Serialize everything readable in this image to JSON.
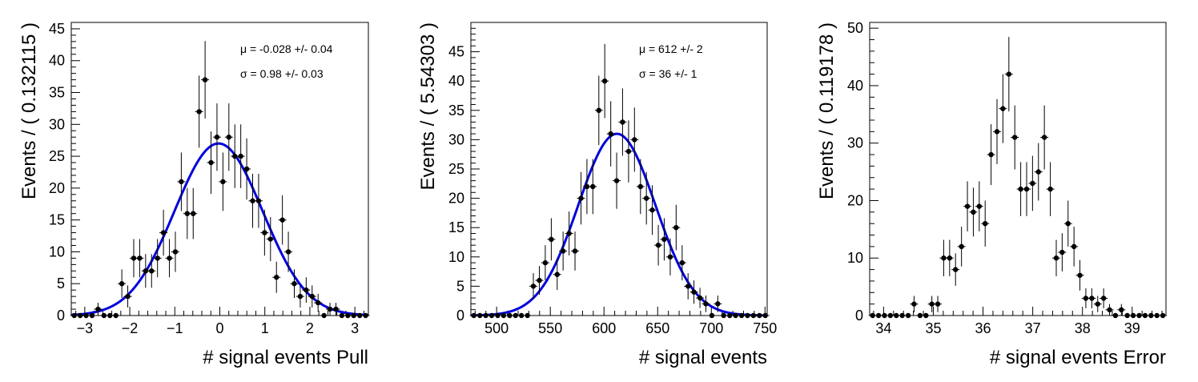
{
  "chart_data": [
    {
      "type": "scatter",
      "title": "",
      "xlabel": "# signal events Pull",
      "ylabel": "Events / ( 0.132115 )",
      "xlim": [
        -3.3,
        3.3
      ],
      "ylim": [
        0,
        46
      ],
      "xticks": [
        -3,
        -2,
        -1,
        0,
        1,
        2,
        3
      ],
      "yticks": [
        0,
        5,
        10,
        15,
        20,
        25,
        30,
        35,
        40,
        45
      ],
      "annotations": [
        "μ = -0.028 +/- 0.04",
        "σ =  0.98 +/- 0.03"
      ],
      "fit": {
        "mean": -0.028,
        "sigma": 0.98,
        "amplitude": 27,
        "color": "#0000dd"
      },
      "series": [
        {
          "marker_color": "#000000",
          "x": [
            -3.2339,
            -3.1018,
            -2.9697,
            -2.8376,
            -2.7054,
            -2.5733,
            -2.4412,
            -2.3091,
            -2.177,
            -2.0449,
            -1.9127,
            -1.7806,
            -1.6485,
            -1.5164,
            -1.3843,
            -1.2522,
            -1.12,
            -0.9879,
            -0.8558,
            -0.7237,
            -0.5916,
            -0.4595,
            -0.3273,
            -0.1952,
            -0.0631,
            0.069,
            0.2011,
            0.3332,
            0.4654,
            0.5975,
            0.7296,
            0.8617,
            0.9938,
            1.1259,
            1.2581,
            1.3902,
            1.5223,
            1.6544,
            1.7865,
            1.9186,
            2.0508,
            2.1829,
            2.315,
            2.4471,
            2.5792,
            2.7113,
            2.8435,
            2.9756,
            3.1077,
            3.2398
          ],
          "y": [
            0,
            0,
            0,
            0,
            1,
            0,
            0,
            0,
            5,
            3,
            9,
            9,
            7,
            7,
            9,
            13,
            9,
            10,
            21,
            16,
            16,
            32,
            37,
            24,
            28,
            21,
            28,
            25,
            25,
            23,
            18,
            18,
            13,
            12,
            6,
            15,
            10,
            5,
            3,
            4,
            3,
            2,
            0,
            1,
            1,
            0,
            0,
            0,
            0,
            0
          ]
        }
      ]
    },
    {
      "type": "scatter",
      "title": "",
      "xlabel": "# signal events",
      "ylabel": "Events / ( 5.54303 )",
      "xlim": [
        476,
        752
      ],
      "ylim": [
        0,
        50
      ],
      "xticks": [
        500,
        550,
        600,
        650,
        700,
        750
      ],
      "yticks": [
        0,
        5,
        10,
        15,
        20,
        25,
        30,
        35,
        40,
        45
      ],
      "annotations": [
        "μ =  612 +/- 2",
        "σ =  36 +/- 1"
      ],
      "fit": {
        "mean": 612,
        "sigma": 36,
        "amplitude": 31,
        "color": "#0000dd"
      },
      "series": [
        {
          "marker_color": "#000000",
          "x": [
            478.8,
            484.4,
            489.9,
            495.4,
            501.0,
            506.5,
            512.1,
            517.6,
            523.1,
            528.7,
            534.2,
            539.8,
            545.3,
            550.9,
            556.4,
            561.9,
            567.5,
            573.0,
            578.6,
            584.1,
            589.6,
            595.2,
            600.7,
            606.3,
            611.8,
            617.3,
            622.9,
            628.4,
            634.0,
            639.5,
            645.0,
            650.6,
            656.1,
            661.7,
            667.2,
            672.8,
            678.3,
            683.8,
            689.4,
            694.9,
            700.5,
            706.0,
            711.5,
            717.1,
            722.6,
            728.2,
            733.7,
            739.2,
            744.8,
            750.3
          ],
          "y": [
            0,
            0,
            0,
            0,
            0,
            0,
            0,
            0,
            0,
            0,
            5,
            6,
            9,
            13,
            7,
            11,
            14,
            11,
            20,
            22,
            22,
            35,
            40,
            31,
            23,
            33,
            28,
            30,
            22,
            20,
            18,
            12,
            13,
            10,
            15,
            9,
            5,
            4,
            3,
            2,
            0,
            2,
            0,
            0,
            0,
            0,
            0,
            0,
            0,
            0
          ]
        }
      ]
    },
    {
      "type": "scatter",
      "title": "",
      "xlabel": "# signal events Error",
      "ylabel": "Events / ( 0.119178 )",
      "xlim": [
        33.72,
        39.68
      ],
      "ylim": [
        0,
        51
      ],
      "xticks": [
        34,
        35,
        36,
        37,
        38,
        39
      ],
      "yticks": [
        0,
        10,
        20,
        30,
        40,
        50
      ],
      "annotations": [],
      "series": [
        {
          "marker_color": "#000000",
          "x": [
            33.78,
            33.899,
            34.018,
            34.137,
            34.256,
            34.375,
            34.494,
            34.613,
            34.733,
            34.852,
            34.971,
            35.09,
            35.209,
            35.328,
            35.447,
            35.567,
            35.686,
            35.805,
            35.924,
            36.043,
            36.162,
            36.281,
            36.4,
            36.52,
            36.639,
            36.758,
            36.877,
            36.996,
            37.115,
            37.234,
            37.354,
            37.473,
            37.592,
            37.711,
            37.83,
            37.949,
            38.068,
            38.188,
            38.307,
            38.426,
            38.545,
            38.664,
            38.783,
            38.902,
            39.021,
            39.141,
            39.26,
            39.379,
            39.498,
            39.617
          ],
          "y": [
            0,
            0,
            0,
            0,
            0,
            0,
            0,
            2,
            0,
            0,
            2,
            2,
            10,
            10,
            8,
            12,
            19,
            18,
            19,
            16,
            28,
            32,
            36,
            42,
            31,
            22,
            22,
            23,
            25,
            31,
            22,
            10,
            11,
            16,
            12,
            7,
            3,
            3,
            2,
            3,
            1,
            0,
            1,
            0,
            0,
            0,
            0,
            0,
            0,
            0
          ]
        }
      ]
    }
  ]
}
